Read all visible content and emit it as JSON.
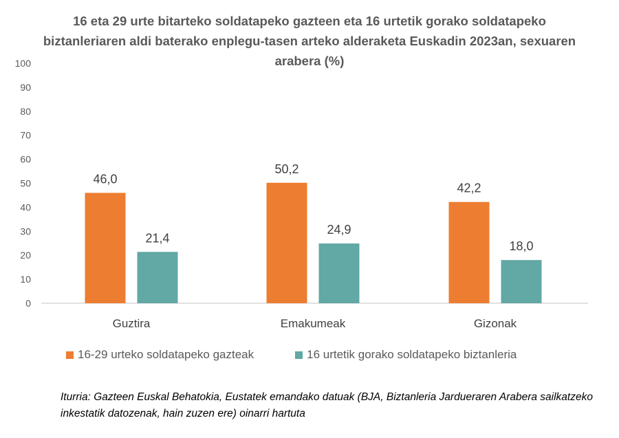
{
  "chart_data": {
    "type": "bar",
    "title": "16 eta 29 urte bitarteko soldatapeko gazteen eta 16 urtetik gorako soldatapeko biztanleriaren aldi baterako enplegu-tasen arteko alderaketa Euskadin 2023an, sexuaren arabera (%)",
    "categories": [
      "Guztira",
      "Emakumeak",
      "Gizonak"
    ],
    "series": [
      {
        "name": "16-29 urteko soldatapeko gazteak",
        "values": [
          46.0,
          50.2,
          42.2
        ],
        "labels": [
          "46,0",
          "50,2",
          "42,2"
        ],
        "color": "#ED7D31"
      },
      {
        "name": "16 urtetik gorako soldatapeko biztanleria",
        "values": [
          21.4,
          24.9,
          18.0
        ],
        "labels": [
          "21,4",
          "24,9",
          "18,0"
        ],
        "color": "#62A8A5"
      }
    ],
    "ylim": [
      0,
      100
    ],
    "yticks": [
      "0",
      "10",
      "20",
      "30",
      "40",
      "50",
      "60",
      "70",
      "80",
      "90",
      "100"
    ],
    "grid": false,
    "legend_position": "bottom",
    "xlabel": "",
    "ylabel": ""
  },
  "source": "Iturria: Gazteen Euskal Behatokia, Eustatek emandako datuak (BJA, Biztanleria Jardueraren Arabera sailkatzeko inkestatik datozenak, hain zuzen ere) oinarri hartuta"
}
